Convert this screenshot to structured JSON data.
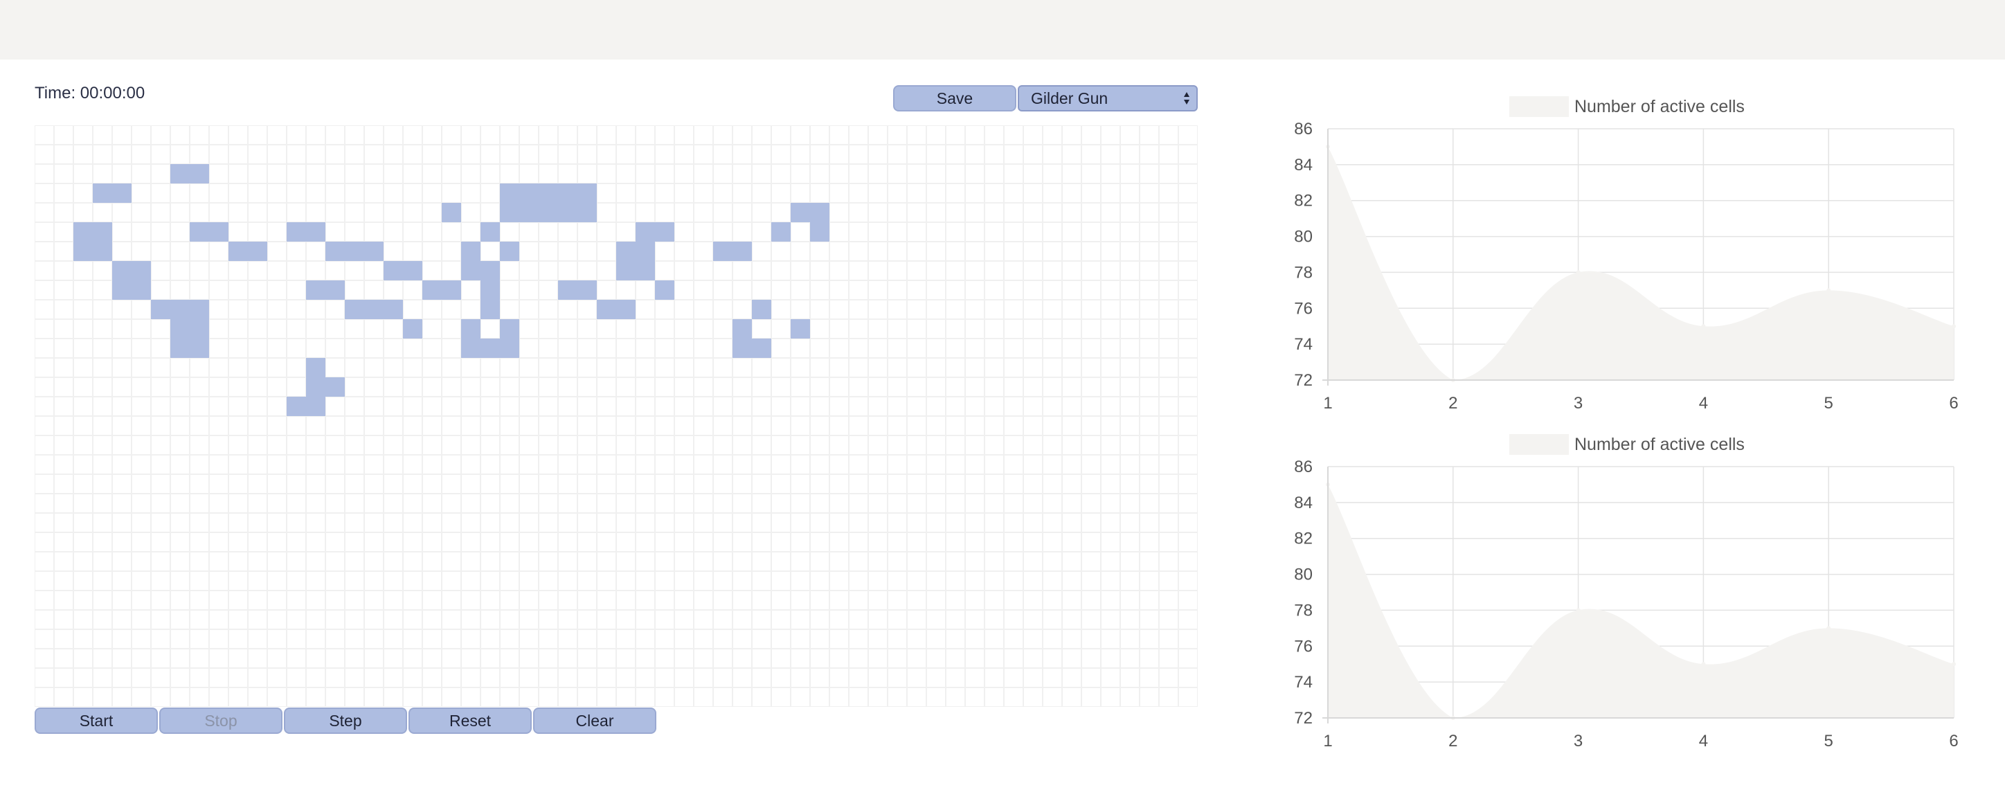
{
  "timer": {
    "label": "Time:",
    "value": "00:00:00"
  },
  "toolbar": {
    "save_label": "Save",
    "pattern_selected": "Gilder Gun"
  },
  "controls": {
    "start": "Start",
    "stop": "Stop",
    "step": "Step",
    "reset": "Reset",
    "clear": "Clear"
  },
  "board": {
    "columns": 60,
    "rows": 30,
    "alive_color": "#aebde1",
    "alive_cells": [
      [
        2,
        7
      ],
      [
        2,
        8
      ],
      [
        3,
        3
      ],
      [
        3,
        4
      ],
      [
        3,
        24
      ],
      [
        3,
        25
      ],
      [
        3,
        26
      ],
      [
        3,
        27
      ],
      [
        3,
        28
      ],
      [
        4,
        21
      ],
      [
        4,
        24
      ],
      [
        4,
        25
      ],
      [
        4,
        26
      ],
      [
        4,
        27
      ],
      [
        4,
        28
      ],
      [
        4,
        39
      ],
      [
        4,
        40
      ],
      [
        5,
        2
      ],
      [
        5,
        3
      ],
      [
        5,
        8
      ],
      [
        5,
        9
      ],
      [
        5,
        13
      ],
      [
        5,
        14
      ],
      [
        5,
        23
      ],
      [
        5,
        31
      ],
      [
        5,
        32
      ],
      [
        5,
        38
      ],
      [
        5,
        40
      ],
      [
        6,
        2
      ],
      [
        6,
        3
      ],
      [
        6,
        10
      ],
      [
        6,
        11
      ],
      [
        6,
        15
      ],
      [
        6,
        16
      ],
      [
        6,
        17
      ],
      [
        6,
        22
      ],
      [
        6,
        24
      ],
      [
        6,
        30
      ],
      [
        6,
        31
      ],
      [
        6,
        35
      ],
      [
        6,
        36
      ],
      [
        7,
        4
      ],
      [
        7,
        5
      ],
      [
        7,
        18
      ],
      [
        7,
        19
      ],
      [
        7,
        22
      ],
      [
        7,
        23
      ],
      [
        7,
        30
      ],
      [
        7,
        31
      ],
      [
        8,
        4
      ],
      [
        8,
        5
      ],
      [
        8,
        14
      ],
      [
        8,
        15
      ],
      [
        8,
        20
      ],
      [
        8,
        21
      ],
      [
        8,
        23
      ],
      [
        8,
        27
      ],
      [
        8,
        28
      ],
      [
        8,
        32
      ],
      [
        9,
        6
      ],
      [
        9,
        7
      ],
      [
        9,
        8
      ],
      [
        9,
        16
      ],
      [
        9,
        17
      ],
      [
        9,
        18
      ],
      [
        9,
        23
      ],
      [
        9,
        29
      ],
      [
        9,
        30
      ],
      [
        9,
        37
      ],
      [
        10,
        7
      ],
      [
        10,
        8
      ],
      [
        10,
        19
      ],
      [
        10,
        22
      ],
      [
        10,
        24
      ],
      [
        10,
        36
      ],
      [
        10,
        39
      ],
      [
        11,
        7
      ],
      [
        11,
        8
      ],
      [
        11,
        22
      ],
      [
        11,
        23
      ],
      [
        11,
        24
      ],
      [
        11,
        36
      ],
      [
        11,
        37
      ],
      [
        12,
        14
      ],
      [
        13,
        14
      ],
      [
        13,
        15
      ],
      [
        14,
        13
      ],
      [
        14,
        14
      ]
    ]
  },
  "charts": [
    {
      "chart_data": {
        "type": "area",
        "legend": "Number of active cells",
        "legend_placement": "top-center",
        "x": [
          1,
          2,
          3,
          4,
          5,
          6
        ],
        "series": [
          {
            "name": "Number of active cells",
            "values": [
              85,
              72,
              78,
              75,
              77,
              75
            ]
          }
        ],
        "ylim": [
          72,
          86
        ],
        "yticks": [
          72,
          74,
          76,
          78,
          80,
          82,
          84,
          86
        ],
        "xticks": [
          1,
          2,
          3,
          4,
          5,
          6
        ],
        "grid": true,
        "fill_color": "#f4f3f1"
      }
    },
    {
      "chart_data": {
        "type": "area",
        "legend": "Number of active cells",
        "legend_placement": "top-center",
        "x": [
          1,
          2,
          3,
          4,
          5,
          6
        ],
        "series": [
          {
            "name": "Number of active cells",
            "values": [
              85,
              72,
              78,
              75,
              77,
              75
            ]
          }
        ],
        "ylim": [
          72,
          86
        ],
        "yticks": [
          72,
          74,
          76,
          78,
          80,
          82,
          84,
          86
        ],
        "xticks": [
          1,
          2,
          3,
          4,
          5,
          6
        ],
        "grid": true,
        "fill_color": "#f4f3f1"
      }
    }
  ]
}
